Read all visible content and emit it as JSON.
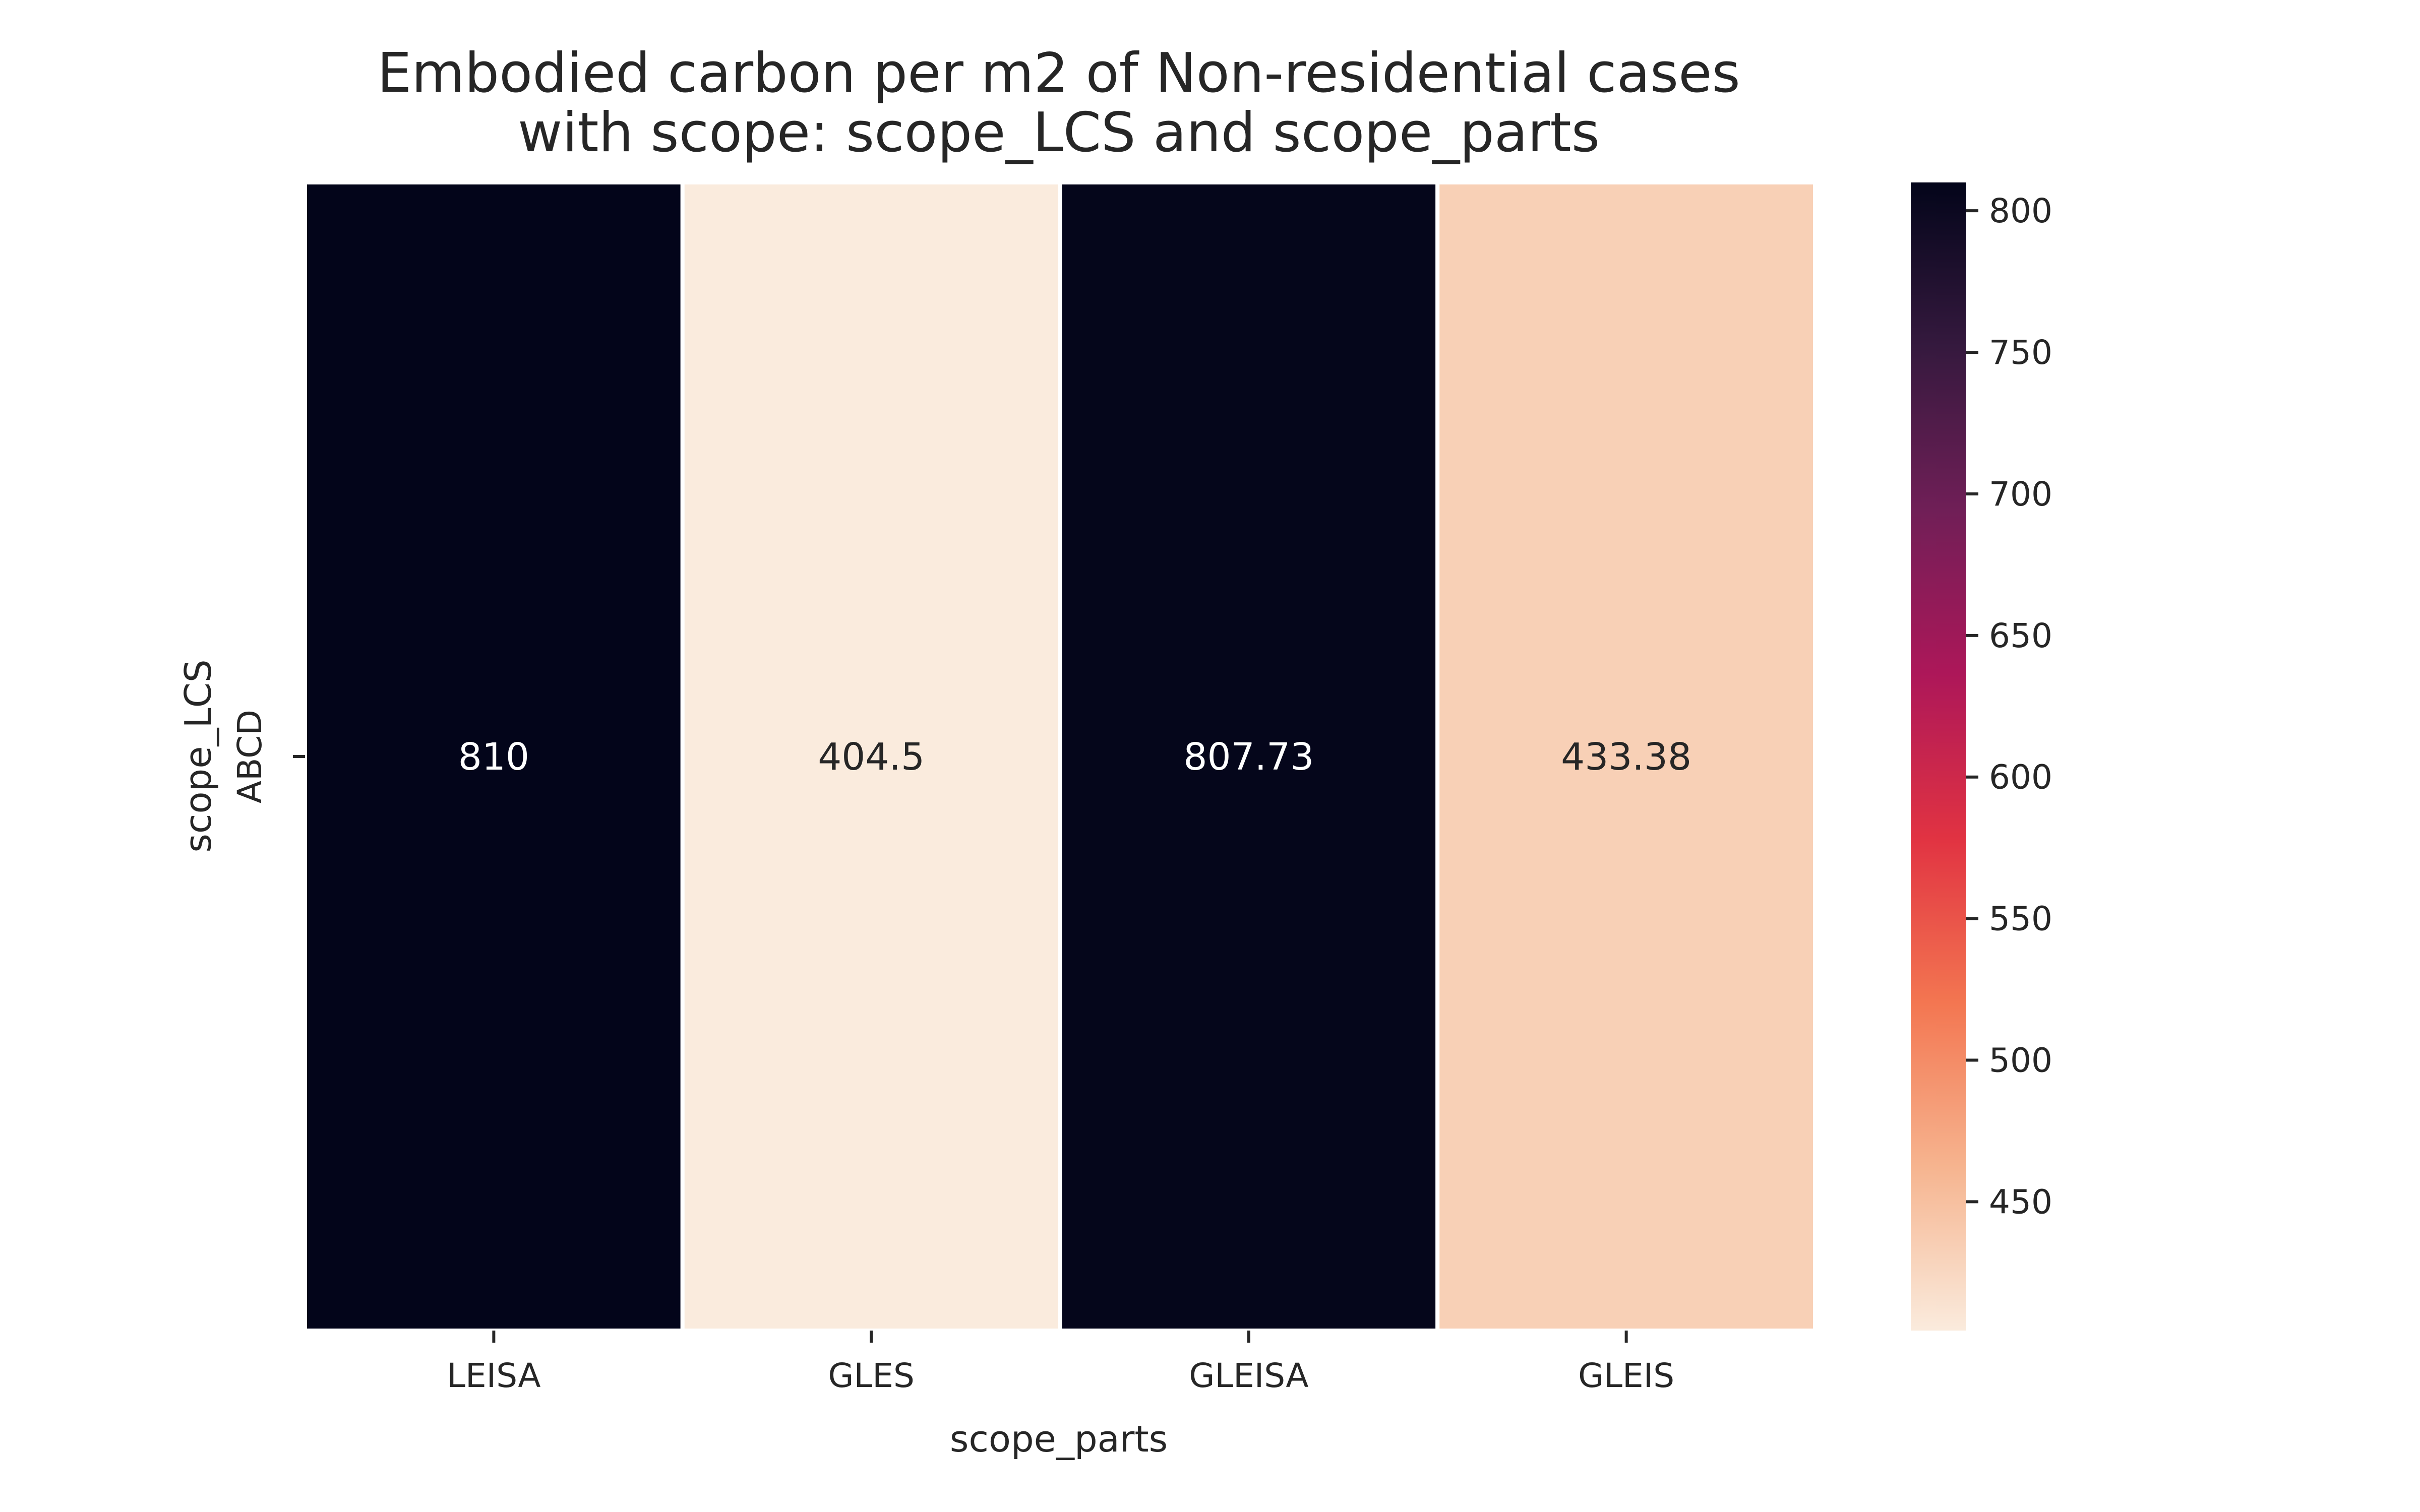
{
  "chart_data": {
    "type": "heatmap",
    "title_lines": [
      "Embodied carbon per m2 of Non-residential cases",
      "with scope: scope_LCS and scope_parts"
    ],
    "xlabel": "scope_parts",
    "ylabel": "scope_LCS",
    "x_categories": [
      "LEISA",
      "GLES",
      "GLEISA",
      "GLEIS"
    ],
    "y_categories": [
      "ABCD"
    ],
    "values": [
      [
        810,
        404.5,
        807.73,
        433.38
      ]
    ],
    "value_labels": [
      [
        "810",
        "404.5",
        "807.73",
        "433.38"
      ]
    ],
    "colorbar": {
      "vmin": 404.5,
      "vmax": 810,
      "ticks": [
        450,
        500,
        550,
        600,
        650,
        700,
        750,
        800
      ],
      "colormap": "rocket_r",
      "stops": [
        "#faebdd",
        "#f6b48f",
        "#f37651",
        "#e13342",
        "#ad1759",
        "#701f57",
        "#35193e",
        "#03051a"
      ]
    }
  }
}
